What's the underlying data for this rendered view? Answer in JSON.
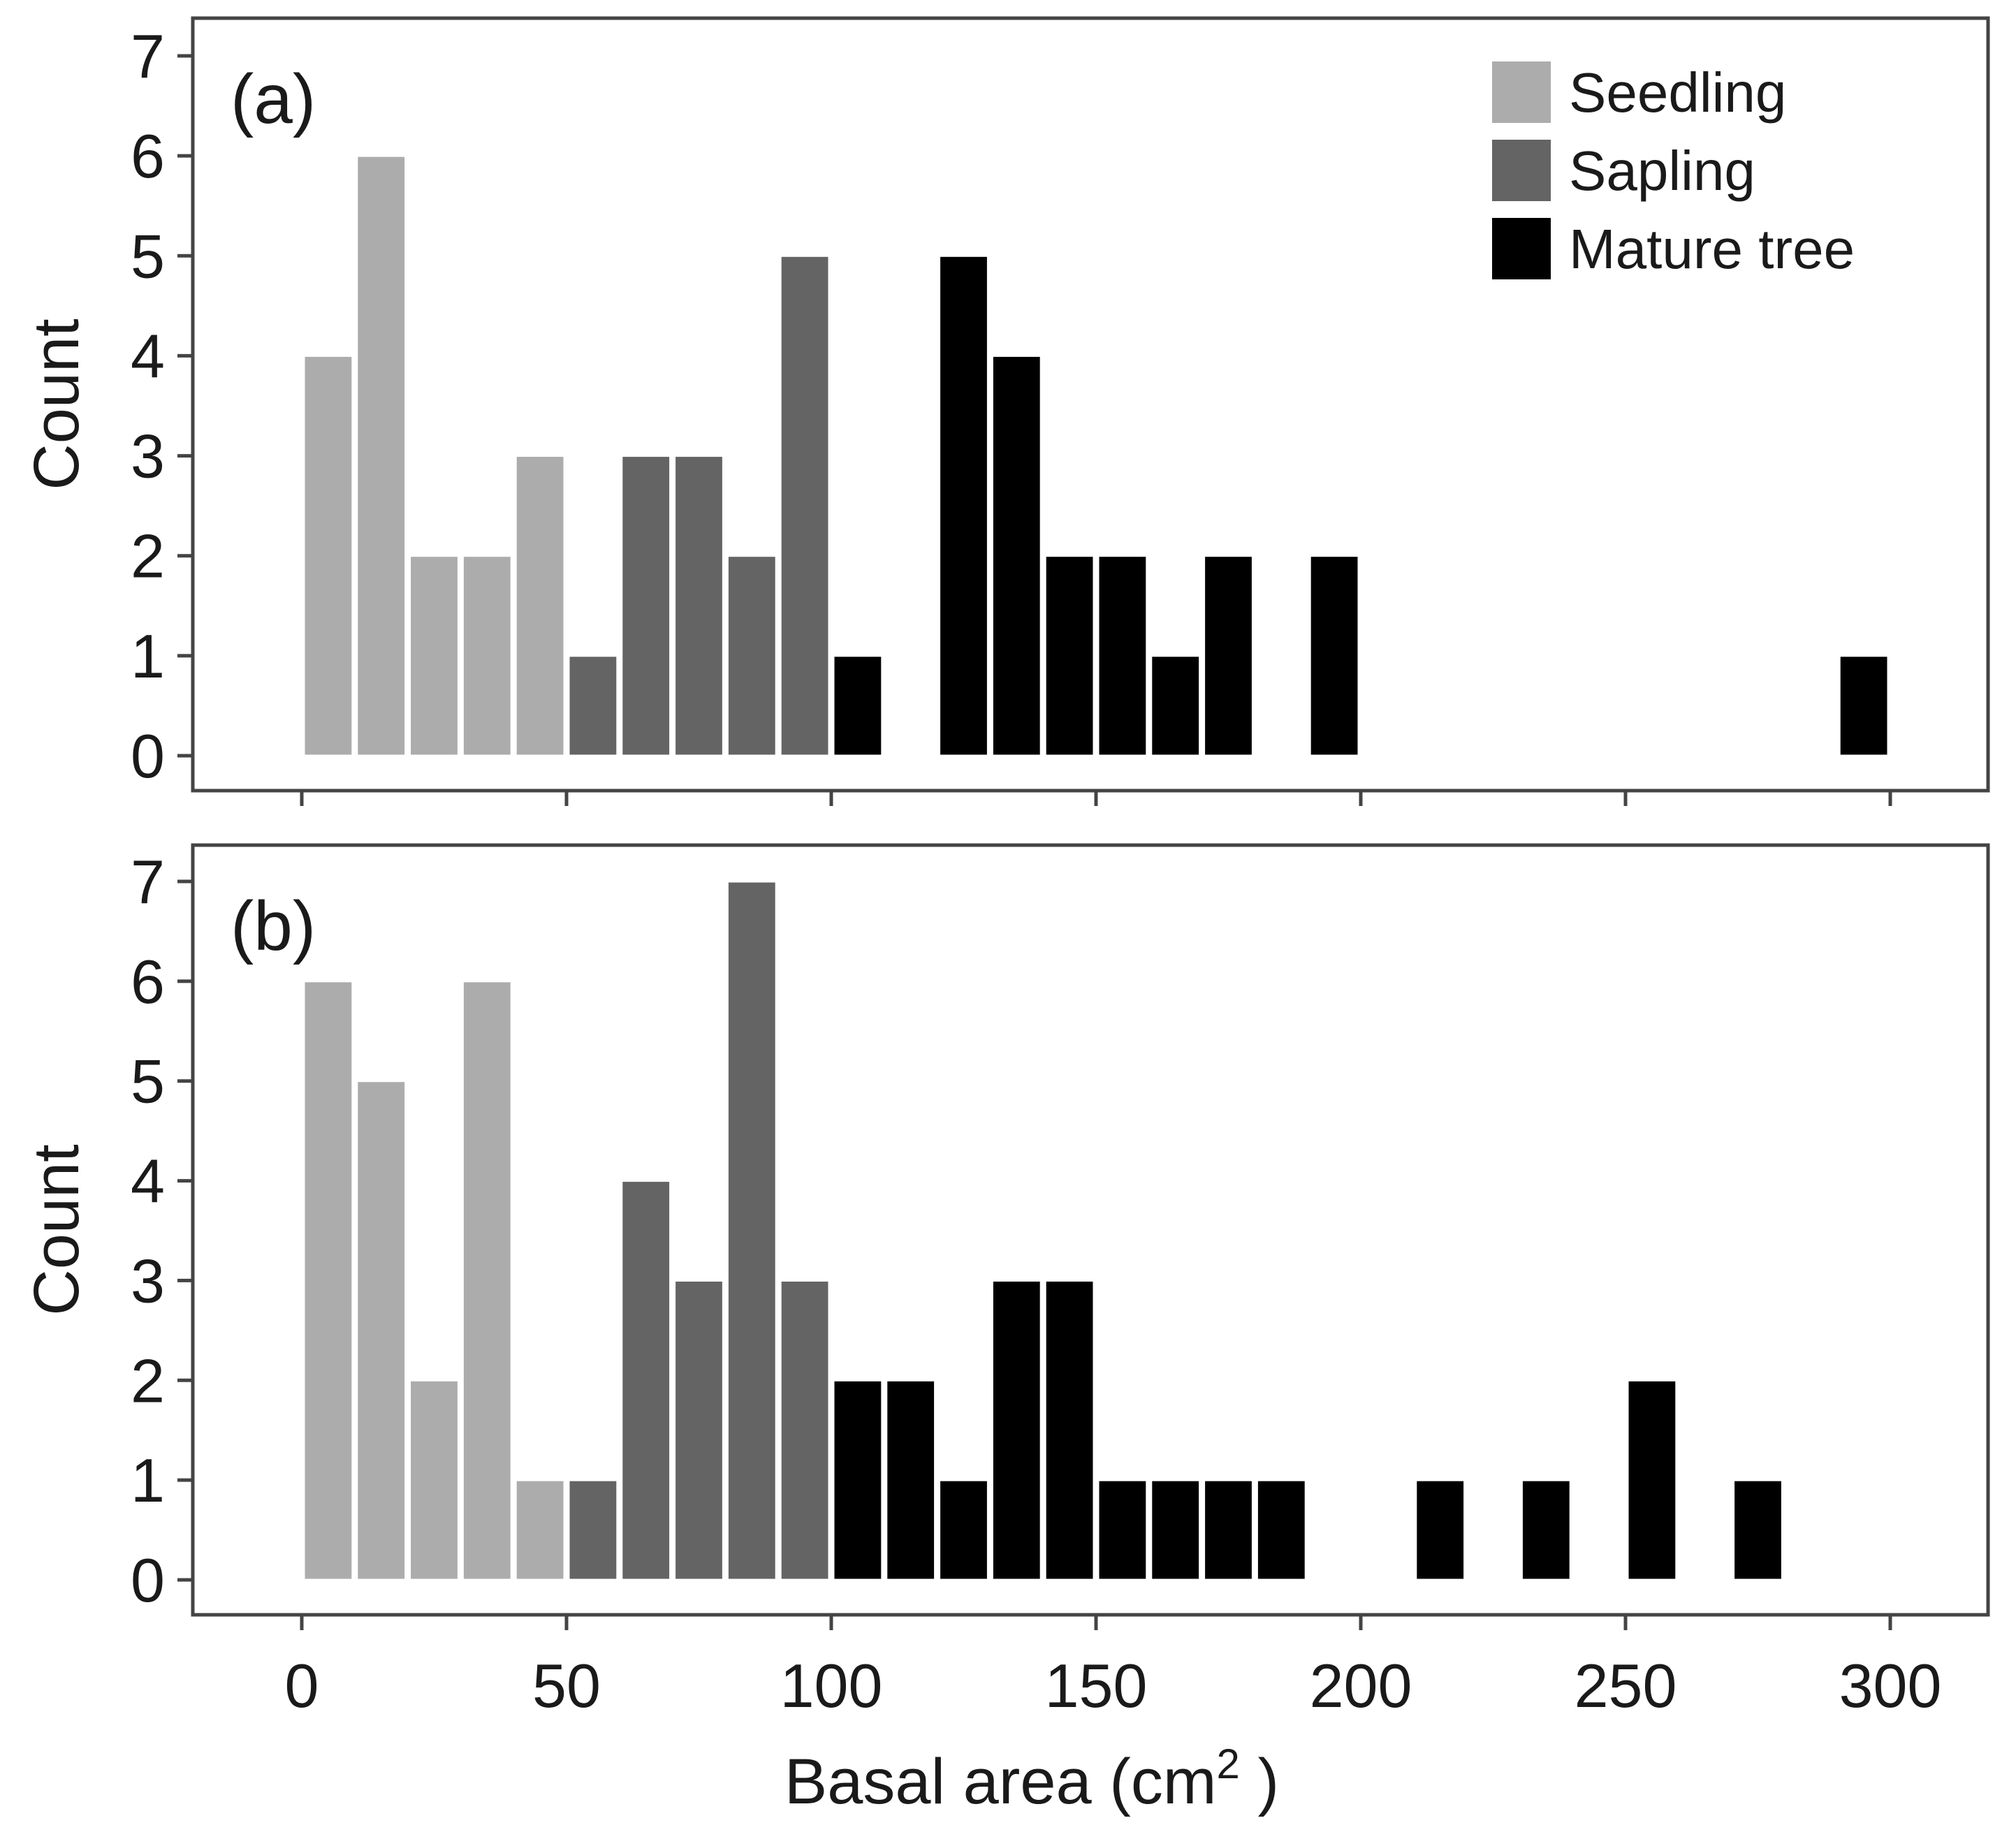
{
  "chart_data": {
    "type": "bar",
    "xlabel": "Basal area (cm²)",
    "xlabel_main": "Basal area (cm",
    "xlabel_sup": "2",
    "xlabel_close": " )",
    "ylabel": "Count",
    "xlim": [
      -20,
      310
    ],
    "ylim": [
      0,
      7
    ],
    "xticks": [
      "0",
      "50",
      "100",
      "150",
      "200",
      "250",
      "300"
    ],
    "yticks": [
      "0",
      "1",
      "2",
      "3",
      "4",
      "5",
      "6",
      "7"
    ],
    "bin_width": 10,
    "legend": {
      "position": "top-right",
      "entries": [
        {
          "label": "Seedling",
          "color": "#acacac"
        },
        {
          "label": "Sapling",
          "color": "#646464"
        },
        {
          "label": "Mature tree",
          "color": "#000000"
        }
      ]
    },
    "panels": [
      {
        "label": "(a)",
        "bars": [
          {
            "x": 0,
            "count": 4,
            "class": "Seedling"
          },
          {
            "x": 10,
            "count": 6,
            "class": "Seedling"
          },
          {
            "x": 20,
            "count": 2,
            "class": "Seedling"
          },
          {
            "x": 30,
            "count": 2,
            "class": "Seedling"
          },
          {
            "x": 40,
            "count": 3,
            "class": "Seedling"
          },
          {
            "x": 50,
            "count": 1,
            "class": "Sapling"
          },
          {
            "x": 60,
            "count": 3,
            "class": "Sapling"
          },
          {
            "x": 70,
            "count": 3,
            "class": "Sapling"
          },
          {
            "x": 80,
            "count": 2,
            "class": "Sapling"
          },
          {
            "x": 90,
            "count": 5,
            "class": "Sapling"
          },
          {
            "x": 100,
            "count": 1,
            "class": "Mature tree"
          },
          {
            "x": 120,
            "count": 5,
            "class": "Mature tree"
          },
          {
            "x": 130,
            "count": 4,
            "class": "Mature tree"
          },
          {
            "x": 140,
            "count": 2,
            "class": "Mature tree"
          },
          {
            "x": 150,
            "count": 2,
            "class": "Mature tree"
          },
          {
            "x": 160,
            "count": 1,
            "class": "Mature tree"
          },
          {
            "x": 170,
            "count": 2,
            "class": "Mature tree"
          },
          {
            "x": 190,
            "count": 2,
            "class": "Mature tree"
          },
          {
            "x": 290,
            "count": 1,
            "class": "Mature tree"
          }
        ]
      },
      {
        "label": "(b)",
        "bars": [
          {
            "x": 0,
            "count": 6,
            "class": "Seedling"
          },
          {
            "x": 10,
            "count": 5,
            "class": "Seedling"
          },
          {
            "x": 20,
            "count": 2,
            "class": "Seedling"
          },
          {
            "x": 30,
            "count": 6,
            "class": "Seedling"
          },
          {
            "x": 40,
            "count": 1,
            "class": "Seedling"
          },
          {
            "x": 50,
            "count": 1,
            "class": "Sapling"
          },
          {
            "x": 60,
            "count": 4,
            "class": "Sapling"
          },
          {
            "x": 70,
            "count": 3,
            "class": "Sapling"
          },
          {
            "x": 80,
            "count": 7,
            "class": "Sapling"
          },
          {
            "x": 90,
            "count": 3,
            "class": "Sapling"
          },
          {
            "x": 100,
            "count": 2,
            "class": "Mature tree"
          },
          {
            "x": 110,
            "count": 2,
            "class": "Mature tree"
          },
          {
            "x": 120,
            "count": 1,
            "class": "Mature tree"
          },
          {
            "x": 130,
            "count": 3,
            "class": "Mature tree"
          },
          {
            "x": 140,
            "count": 3,
            "class": "Mature tree"
          },
          {
            "x": 150,
            "count": 1,
            "class": "Mature tree"
          },
          {
            "x": 160,
            "count": 1,
            "class": "Mature tree"
          },
          {
            "x": 170,
            "count": 1,
            "class": "Mature tree"
          },
          {
            "x": 180,
            "count": 1,
            "class": "Mature tree"
          },
          {
            "x": 210,
            "count": 1,
            "class": "Mature tree"
          },
          {
            "x": 230,
            "count": 1,
            "class": "Mature tree"
          },
          {
            "x": 250,
            "count": 2,
            "class": "Mature tree"
          },
          {
            "x": 270,
            "count": 1,
            "class": "Mature tree"
          }
        ]
      }
    ]
  }
}
